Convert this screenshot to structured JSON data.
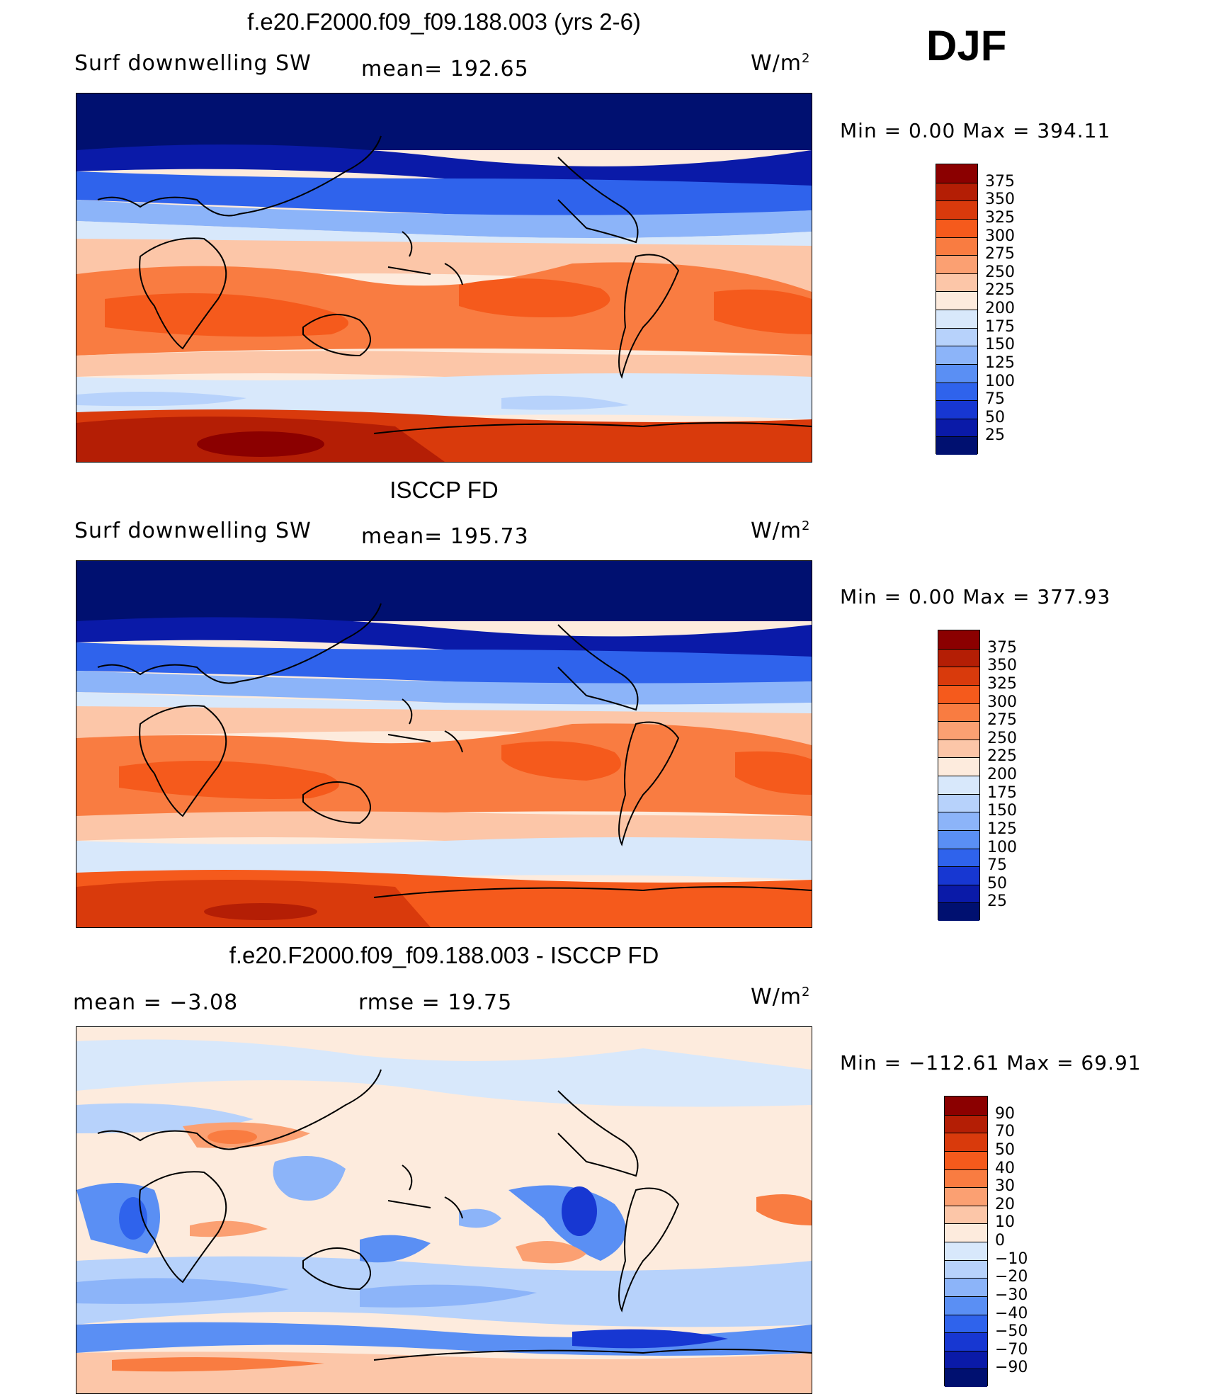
{
  "season": "DJF",
  "panels": [
    {
      "title": "f.e20.F2000.f09_f09.188.003 (yrs 2-6)",
      "left_label": "Surf downwelling SW",
      "mid_label": "mean= 192.65",
      "units": "W/m",
      "units_sup": "2",
      "minmax": "Min =    0.00 Max = 394.11",
      "colorbar": {
        "levels": [
          "375",
          "350",
          "325",
          "300",
          "275",
          "250",
          "225",
          "200",
          "175",
          "150",
          "125",
          "100",
          "75",
          "50",
          "25"
        ],
        "colors": [
          "#8b0000",
          "#b41e05",
          "#d93a0c",
          "#f55a1c",
          "#f97c41",
          "#fba072",
          "#fcc6a8",
          "#fdebdd",
          "#d8e8fb",
          "#b7d2fb",
          "#8cb4f9",
          "#5a8ff4",
          "#2f63ec",
          "#1737d2",
          "#0a1aa8",
          "#001070"
        ]
      }
    },
    {
      "title": "ISCCP FD",
      "left_label": "Surf downwelling SW",
      "mid_label": "mean= 195.73",
      "units": "W/m",
      "units_sup": "2",
      "minmax": "Min =    0.00 Max = 377.93",
      "colorbar": {
        "levels": [
          "375",
          "350",
          "325",
          "300",
          "275",
          "250",
          "225",
          "200",
          "175",
          "150",
          "125",
          "100",
          "75",
          "50",
          "25"
        ],
        "colors": [
          "#8b0000",
          "#b41e05",
          "#d93a0c",
          "#f55a1c",
          "#f97c41",
          "#fba072",
          "#fcc6a8",
          "#fdebdd",
          "#d8e8fb",
          "#b7d2fb",
          "#8cb4f9",
          "#5a8ff4",
          "#2f63ec",
          "#1737d2",
          "#0a1aa8",
          "#001070"
        ]
      }
    },
    {
      "title": "f.e20.F2000.f09_f09.188.003 - ISCCP FD",
      "left_label": "mean =   −3.08",
      "mid_label": "rmse =   19.75",
      "units": "W/m",
      "units_sup": "2",
      "minmax": "Min = −112.61 Max =   69.91",
      "colorbar": {
        "levels": [
          "90",
          "70",
          "50",
          "40",
          "30",
          "20",
          "10",
          "0",
          "−10",
          "−20",
          "−30",
          "−40",
          "−50",
          "−70",
          "−90"
        ],
        "colors": [
          "#8b0000",
          "#b41e05",
          "#d93a0c",
          "#f55a1c",
          "#f97c41",
          "#fba072",
          "#fcc6a8",
          "#fdebdd",
          "#d8e8fb",
          "#b7d2fb",
          "#8cb4f9",
          "#5a8ff4",
          "#2f63ec",
          "#1737d2",
          "#0a1aa8",
          "#001070"
        ]
      }
    }
  ]
}
